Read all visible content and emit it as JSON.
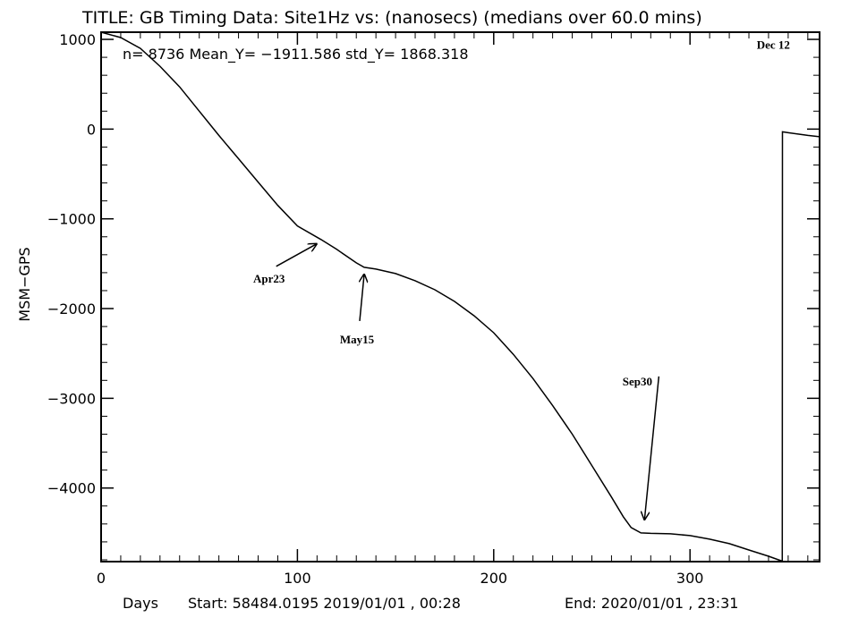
{
  "chart_data": {
    "type": "line",
    "title": "TITLE: GB Timing Data: Site1Hz vs: (nanosecs) (medians over 60.0 mins)",
    "stats_label": "n=  8736 Mean_Y= −1911.586 std_Y=  1868.318",
    "xlabel": "Days",
    "footer_start": "Start:  58484.0195 2019/01/01 , 00:28",
    "footer_end": "End:  2020/01/01 , 23:31",
    "ylabel": "MSM−GPS",
    "xlim": [
      0,
      366
    ],
    "ylim": [
      -4820,
      1080
    ],
    "x_ticks": [
      0,
      100,
      200,
      300
    ],
    "x_tick_labels": [
      "0",
      "100",
      "200",
      "300"
    ],
    "y_ticks": [
      1000,
      0,
      -1000,
      -2000,
      -3000,
      -4000
    ],
    "y_tick_labels": [
      "1000",
      "0",
      "−1000",
      "−2000",
      "−3000",
      "−4000"
    ],
    "series": [
      {
        "x": [
          0,
          10,
          20,
          30,
          40,
          50,
          60,
          70,
          80,
          90,
          100,
          112,
          120,
          130,
          134,
          140,
          150,
          160,
          170,
          180,
          190,
          200,
          210,
          220,
          230,
          240,
          250,
          260,
          266,
          270,
          275,
          280,
          290,
          300,
          310,
          320,
          330,
          340,
          347,
          347.1,
          350,
          355,
          360,
          366
        ],
        "y": [
          1080,
          1020,
          900,
          700,
          470,
          200,
          -70,
          -330,
          -590,
          -850,
          -1080,
          -1230,
          -1340,
          -1490,
          -1540,
          -1560,
          -1610,
          -1690,
          -1790,
          -1920,
          -2080,
          -2270,
          -2510,
          -2780,
          -3080,
          -3400,
          -3750,
          -4100,
          -4320,
          -4440,
          -4500,
          -4505,
          -4510,
          -4530,
          -4570,
          -4620,
          -4690,
          -4760,
          -4815,
          -30,
          -40,
          -55,
          -70,
          -85
        ]
      }
    ],
    "annotations": [
      {
        "text": "Apr23",
        "x": 112,
        "y": -1230
      },
      {
        "text": "May15",
        "x": 134,
        "y": -1540
      },
      {
        "text": "Sep30",
        "x": 275,
        "y": -4500
      },
      {
        "text": "Dec 12",
        "x": 347,
        "y": -30
      }
    ],
    "grid": false,
    "legend": "none"
  }
}
